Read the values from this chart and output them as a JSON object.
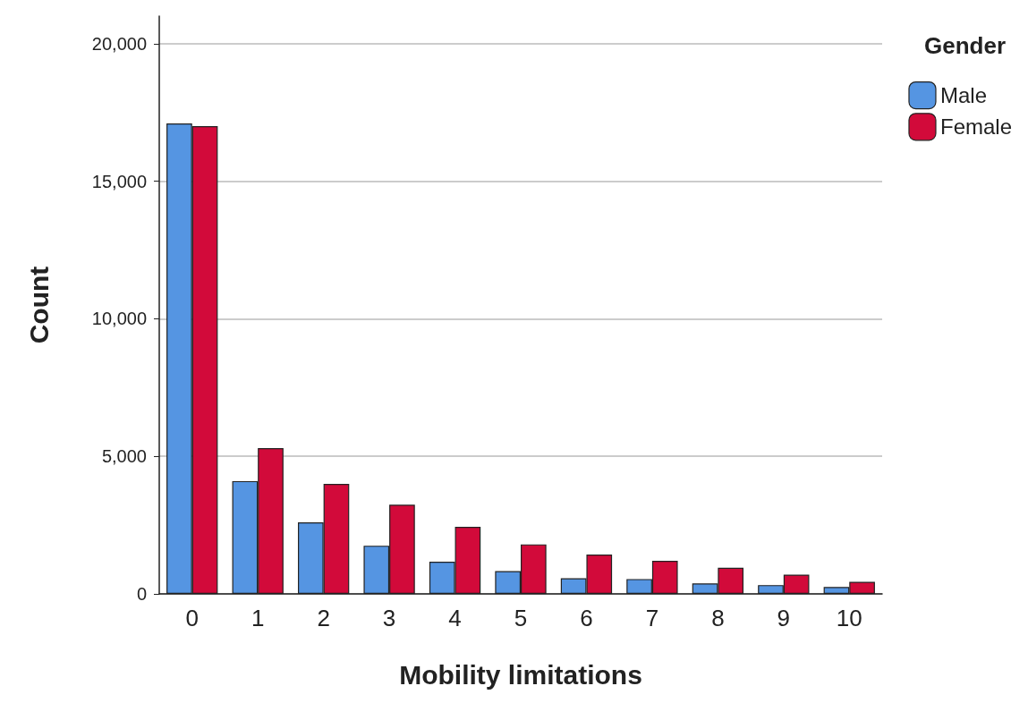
{
  "chart_data": {
    "type": "bar",
    "xlabel": "Mobility limitations",
    "ylabel": "Count",
    "legend_title": "Gender",
    "categories": [
      "0",
      "1",
      "2",
      "3",
      "4",
      "5",
      "6",
      "7",
      "8",
      "9",
      "10"
    ],
    "series": [
      {
        "name": "Male",
        "color": "#5595e2",
        "values": [
          17100,
          4100,
          2600,
          1750,
          1170,
          830,
          570,
          540,
          380,
          320,
          250
        ]
      },
      {
        "name": "Female",
        "color": "#d20a3a",
        "values": [
          17000,
          5300,
          4000,
          3240,
          2440,
          1800,
          1430,
          1200,
          950,
          700,
          440
        ]
      }
    ],
    "ylim": [
      0,
      21000
    ],
    "yticks": [
      0,
      {
        "value": 5000,
        "label": "5,000"
      },
      {
        "value": 10000,
        "label": "10,000"
      },
      {
        "value": 15000,
        "label": "15,000"
      },
      {
        "value": 20000,
        "label": "20,000"
      }
    ],
    "grid": "y",
    "legend": "top right"
  }
}
